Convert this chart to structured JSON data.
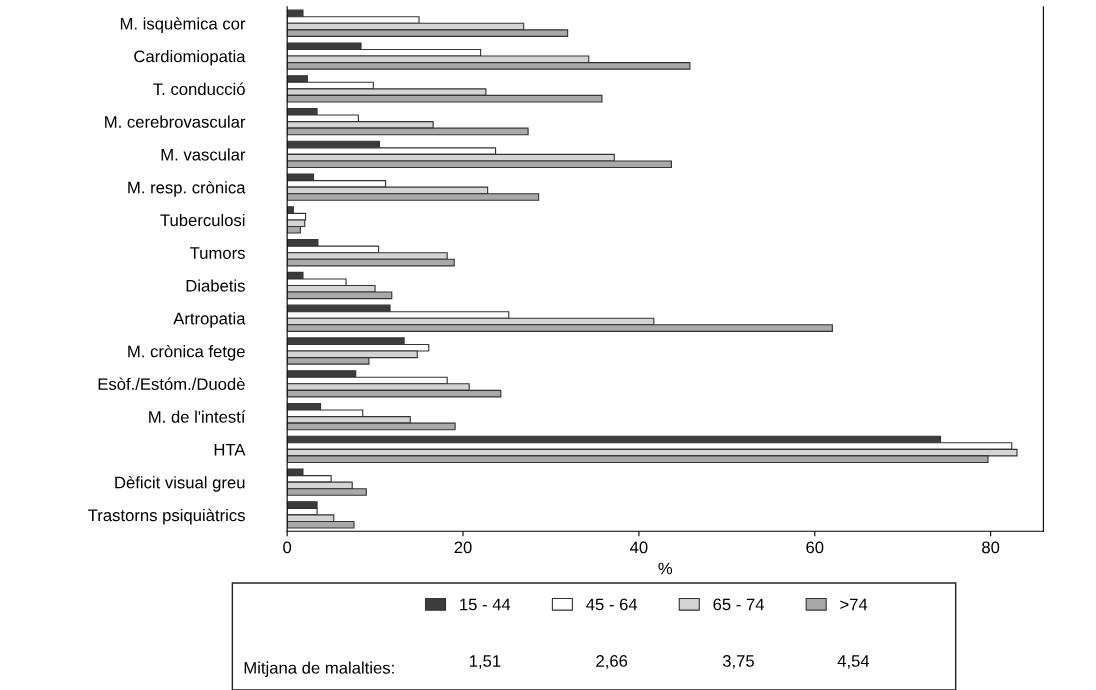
{
  "chart_data": {
    "type": "bar",
    "orientation": "horizontal",
    "xlabel": "%",
    "categories": [
      "M. isquèmica cor",
      "Cardiomiopatia",
      "T. conducció",
      "M. cerebrovascular",
      "M. vascular",
      "M. resp. crònica",
      "Tuberculosi",
      "Tumors",
      "Diabetis",
      "Artropatia",
      "M. crònica fetge",
      "Esòf./Estóm./Duodè",
      "M. de l'intestí",
      "HTA",
      "Dèficit visual greu",
      "Trastorns psiquiàtrics"
    ],
    "series": [
      {
        "name": "15 - 44",
        "color": "#3c3c3c",
        "values": [
          1.8,
          8.4,
          2.3,
          3.4,
          10.5,
          3.0,
          0.7,
          3.5,
          1.8,
          11.7,
          13.3,
          7.8,
          3.8,
          74.3,
          1.8,
          3.4
        ]
      },
      {
        "name": "45 - 64",
        "color": "#ffffff",
        "values": [
          15.0,
          22.0,
          9.8,
          8.1,
          23.7,
          11.2,
          2.1,
          10.4,
          6.7,
          25.2,
          16.1,
          18.2,
          8.6,
          82.4,
          5.0,
          3.4
        ]
      },
      {
        "name": "65 - 74",
        "color": "#d4d4d4",
        "values": [
          26.9,
          34.3,
          22.6,
          16.6,
          37.2,
          22.8,
          2.0,
          18.2,
          10.0,
          41.7,
          14.8,
          20.7,
          14.0,
          83.0,
          7.4,
          5.3
        ]
      },
      {
        "name": ">74",
        "color": "#a9a9a9",
        "values": [
          31.9,
          45.8,
          35.8,
          27.4,
          43.7,
          28.6,
          1.5,
          19.0,
          11.9,
          62.0,
          9.3,
          24.3,
          19.1,
          79.7,
          9.0,
          7.6
        ]
      }
    ],
    "xlim": [
      0,
      86
    ],
    "xticks": [
      0,
      20,
      40,
      60,
      80
    ],
    "grid": false,
    "legend": "bottom",
    "annotations": [
      "Mitjana de malalties:",
      "1,51",
      "2,66",
      "3,75",
      "4,54"
    ]
  }
}
